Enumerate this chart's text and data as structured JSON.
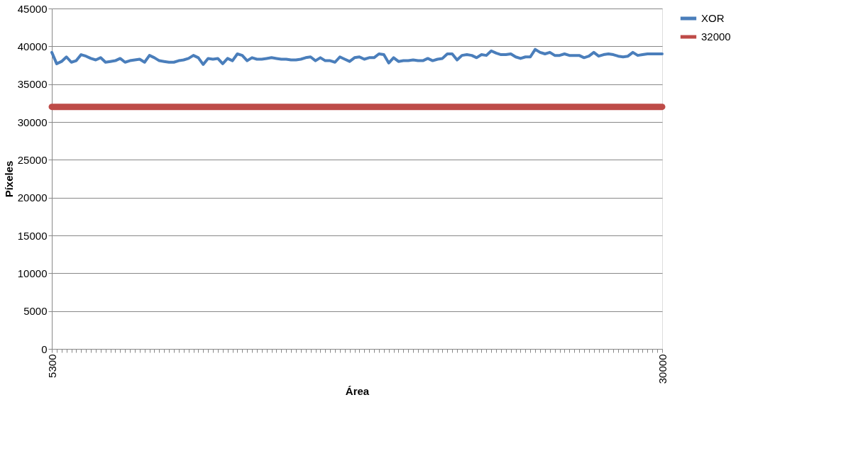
{
  "chart_data": {
    "type": "line",
    "xlabel": "Área",
    "ylabel": "Píxeles",
    "categories": [
      "5300",
      null,
      null,
      null,
      null,
      null,
      null,
      null,
      null,
      null,
      null,
      null,
      null,
      null,
      null,
      null,
      null,
      null,
      null,
      null,
      null,
      null,
      null,
      null,
      null,
      null,
      null,
      null,
      null,
      null,
      null,
      null,
      null,
      null,
      null,
      null,
      null,
      null,
      null,
      null,
      null,
      null,
      null,
      null,
      null,
      null,
      null,
      null,
      null,
      null,
      null,
      null,
      null,
      null,
      null,
      null,
      null,
      null,
      null,
      null,
      null,
      null,
      null,
      null,
      null,
      null,
      null,
      null,
      null,
      null,
      null,
      null,
      null,
      null,
      null,
      null,
      null,
      null,
      null,
      null,
      null,
      null,
      null,
      null,
      null,
      null,
      null,
      null,
      null,
      null,
      null,
      null,
      null,
      null,
      null,
      null,
      null,
      null,
      null,
      null,
      null,
      null,
      null,
      null,
      null,
      null,
      null,
      null,
      null,
      null,
      null,
      null,
      null,
      null,
      null,
      null,
      null,
      null,
      null,
      null,
      null,
      null,
      null,
      null,
      null,
      "30000"
    ],
    "series": [
      {
        "name": "XOR",
        "color": "#4a7ebb",
        "values": [
          39200,
          37700,
          38000,
          38600,
          37900,
          38100,
          38900,
          38700,
          38400,
          38200,
          38500,
          37900,
          38000,
          38100,
          38400,
          37900,
          38100,
          38200,
          38300,
          37900,
          38800,
          38500,
          38100,
          38000,
          37900,
          37900,
          38100,
          38200,
          38400,
          38800,
          38500,
          37600,
          38400,
          38300,
          38400,
          37700,
          38400,
          38100,
          39000,
          38800,
          38100,
          38500,
          38300,
          38300,
          38400,
          38500,
          38400,
          38300,
          38300,
          38200,
          38200,
          38300,
          38500,
          38600,
          38100,
          38500,
          38100,
          38100,
          37900,
          38600,
          38300,
          38000,
          38500,
          38600,
          38300,
          38500,
          38500,
          39000,
          38900,
          37800,
          38500,
          38000,
          38100,
          38100,
          38200,
          38100,
          38100,
          38400,
          38100,
          38300,
          38400,
          39000,
          39000,
          38200,
          38800,
          38900,
          38800,
          38500,
          38900,
          38800,
          39400,
          39100,
          38900,
          38900,
          39000,
          38600,
          38400,
          38600,
          38600,
          39600,
          39200,
          39000,
          39200,
          38800,
          38800,
          39000,
          38800,
          38800,
          38800,
          38500,
          38700,
          39200,
          38700,
          38900,
          39000,
          38900,
          38700,
          38600,
          38700,
          39200,
          38800,
          38900,
          39000,
          39000,
          39000,
          39000
        ]
      },
      {
        "name": "32000",
        "color": "#be4b48",
        "values": [
          32000,
          32000,
          32000,
          32000,
          32000,
          32000,
          32000,
          32000,
          32000,
          32000,
          32000,
          32000,
          32000,
          32000,
          32000,
          32000,
          32000,
          32000,
          32000,
          32000,
          32000,
          32000,
          32000,
          32000,
          32000,
          32000,
          32000,
          32000,
          32000,
          32000,
          32000,
          32000,
          32000,
          32000,
          32000,
          32000,
          32000,
          32000,
          32000,
          32000,
          32000,
          32000,
          32000,
          32000,
          32000,
          32000,
          32000,
          32000,
          32000,
          32000,
          32000,
          32000,
          32000,
          32000,
          32000,
          32000,
          32000,
          32000,
          32000,
          32000,
          32000,
          32000,
          32000,
          32000,
          32000,
          32000,
          32000,
          32000,
          32000,
          32000,
          32000,
          32000,
          32000,
          32000,
          32000,
          32000,
          32000,
          32000,
          32000,
          32000,
          32000,
          32000,
          32000,
          32000,
          32000,
          32000,
          32000,
          32000,
          32000,
          32000,
          32000,
          32000,
          32000,
          32000,
          32000,
          32000,
          32000,
          32000,
          32000,
          32000,
          32000,
          32000,
          32000,
          32000,
          32000,
          32000,
          32000,
          32000,
          32000,
          32000,
          32000,
          32000,
          32000,
          32000,
          32000,
          32000,
          32000,
          32000,
          32000,
          32000,
          32000,
          32000,
          32000,
          32000,
          32000,
          32000
        ]
      }
    ],
    "ylim": [
      0,
      45000
    ],
    "yticks": [
      0,
      5000,
      10000,
      15000,
      20000,
      25000,
      30000,
      35000,
      40000,
      45000
    ],
    "grid": "y",
    "legend": "right",
    "marker": "none",
    "line_style": "solid"
  }
}
